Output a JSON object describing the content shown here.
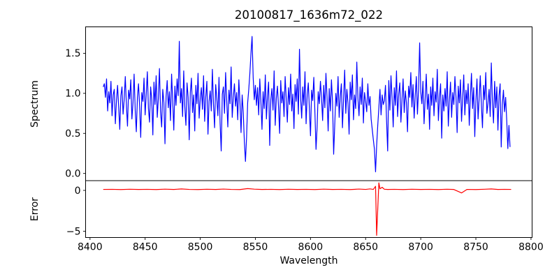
{
  "figure": {
    "title": "20100817_1636m72_022",
    "background": "#ffffff",
    "axis_color": "#000000"
  },
  "chart_data": [
    {
      "type": "line",
      "name": "spectrum",
      "ylabel": "Spectrum",
      "color": "#0000ff",
      "xlim": [
        8396,
        8801
      ],
      "ylim": [
        -0.09,
        1.83
      ],
      "yticks": [
        0.0,
        0.5,
        1.0,
        1.5
      ],
      "ytick_labels": [
        "0.0",
        "0.5",
        "1.0",
        "1.5"
      ],
      "x_start": 8412,
      "x_step": 1,
      "values": [
        1.08,
        1.12,
        0.95,
        1.18,
        0.78,
        1.02,
        0.88,
        1.15,
        0.72,
        0.98,
        1.05,
        0.62,
        0.91,
        1.1,
        0.83,
        0.55,
        0.97,
        1.08,
        0.74,
        0.92,
        1.21,
        0.86,
        0.59,
        1.04,
        0.93,
        1.17,
        0.68,
        0.88,
        1.24,
        0.79,
        0.52,
        0.95,
        1.12,
        0.84,
        0.45,
        1.01,
        0.9,
        1.19,
        0.73,
        0.99,
        1.27,
        0.81,
        0.64,
        1.08,
        0.92,
        0.48,
        1.14,
        0.86,
        1.22,
        0.7,
        0.94,
        1.31,
        0.77,
        0.58,
        1.05,
        0.89,
        0.37,
        0.96,
        1.16,
        0.82,
        1.02,
        0.66,
        1.24,
        0.91,
        0.54,
        1.09,
        0.85,
        1.18,
        0.97,
        1.65,
        0.88,
        1.06,
        0.71,
        1.28,
        0.83,
        0.6,
        1.13,
        0.95,
        0.42,
        1.01,
        1.19,
        0.76,
        0.98,
        0.53,
        1.1,
        0.87,
        1.25,
        0.69,
        0.93,
        1.07,
        0.8,
        1.22,
        0.65,
        0.96,
        1.15,
        0.49,
        0.9,
        1.03,
        0.78,
        1.3,
        0.86,
        0.57,
        1.11,
        0.94,
        0.72,
        1.2,
        0.63,
        0.28,
        0.99,
        1.08,
        0.75,
        1.26,
        0.91,
        0.58,
        1.04,
        0.87,
        1.33,
        0.7,
        0.95,
        1.12,
        0.84,
        1.01,
        0.67,
        1.17,
        0.89,
        0.51,
        0.98,
        0.76,
        0.4,
        0.15,
        0.45,
        0.88,
        1.05,
        1.25,
        1.5,
        1.71,
        1.2,
        0.92,
        1.1,
        0.85,
        1.07,
        0.73,
        1.18,
        0.9,
        0.55,
        1.02,
        0.81,
        1.23,
        0.68,
        0.97,
        1.14,
        0.35,
        0.92,
        1.06,
        0.79,
        1.28,
        0.6,
        0.94,
        1.09,
        0.83,
        0.5,
        1.16,
        0.88,
        1.02,
        0.71,
        1.21,
        0.93,
        0.64,
        1.07,
        0.86,
        1.24,
        0.78,
        0.99,
        0.56,
        1.11,
        0.9,
        1.18,
        0.74,
        1.55,
        0.95,
        0.69,
        1.08,
        0.85,
        1.27,
        0.62,
        0.98,
        1.13,
        0.8,
        0.47,
        1.04,
        0.91,
        1.2,
        0.76,
        0.3,
        0.58,
        1.02,
        0.87,
        1.15,
        0.94,
        0.66,
        1.1,
        0.82,
        1.25,
        0.95,
        0.53,
        1.06,
        0.78,
        1.17,
        0.89,
        0.24,
        0.61,
        1.0,
        0.84,
        1.21,
        0.7,
        0.96,
        1.12,
        0.57,
        0.93,
        1.29,
        0.75,
        1.05,
        0.88,
        0.49,
        1.14,
        0.92,
        1.23,
        0.67,
        0.98,
        0.81,
        1.39,
        0.94,
        0.72,
        1.08,
        0.86,
        1.19,
        0.63,
        1.01,
        0.9,
        0.77,
        1.12,
        0.85,
        0.96,
        0.68,
        0.55,
        0.42,
        0.3,
        0.02,
        0.35,
        0.6,
        0.82,
        1.05,
        0.73,
        0.98,
        0.86,
        0.91,
        1.1,
        0.66,
        0.28,
        1.16,
        0.79,
        1.22,
        0.94,
        0.58,
        1.07,
        0.85,
        1.28,
        0.71,
        0.99,
        1.13,
        0.64,
        0.92,
        1.18,
        0.76,
        1.03,
        0.88,
        0.52,
        1.09,
        0.95,
        1.26,
        0.83,
        1.11,
        0.69,
        0.97,
        1.21,
        0.74,
        1.05,
        1.63,
        1.02,
        0.87,
        1.15,
        0.62,
        0.93,
        1.24,
        0.8,
        0.99,
        0.55,
        1.08,
        0.85,
        1.19,
        0.72,
        1.02,
        0.89,
        1.3,
        0.66,
        0.95,
        1.12,
        0.44,
        0.98,
        0.78,
        1.06,
        0.84,
        1.27,
        0.59,
        0.92,
        1.14,
        0.7,
        1.01,
        0.86,
        1.21,
        0.95,
        0.51,
        1.09,
        0.88,
        1.17,
        0.65,
        0.94,
        1.23,
        0.73,
        1.04,
        0.87,
        1.12,
        0.6,
        0.96,
        1.25,
        0.81,
        1.07,
        0.46,
        0.9,
        1.18,
        0.68,
        0.94,
        1.22,
        0.85,
        0.57,
        1.1,
        0.92,
        1.26,
        0.75,
        0.88,
        1.05,
        0.71,
        1.38,
        0.9,
        0.63,
        1.15,
        0.82,
        1.08,
        0.54,
        0.97,
        1.12,
        0.33,
        0.86,
        1.04,
        0.77,
        0.95,
        0.66,
        0.31,
        0.6,
        0.33
      ]
    },
    {
      "type": "line",
      "name": "error",
      "ylabel": "Error",
      "xlabel": "Wavelength",
      "color": "#ff0000",
      "xlim": [
        8396,
        8801
      ],
      "ylim": [
        -5.76,
        1.19
      ],
      "yticks": [
        0,
        -5
      ],
      "ytick_labels": [
        "0",
        "−5"
      ],
      "xticks": [
        8400,
        8450,
        8500,
        8550,
        8600,
        8650,
        8700,
        8750,
        8800
      ],
      "xtick_labels": [
        "8400",
        "8450",
        "8500",
        "8550",
        "8600",
        "8650",
        "8700",
        "8750",
        "8800"
      ],
      "points": [
        [
          8412,
          0.12
        ],
        [
          8420,
          0.13
        ],
        [
          8428,
          0.1
        ],
        [
          8436,
          0.14
        ],
        [
          8444,
          0.11
        ],
        [
          8452,
          0.13
        ],
        [
          8460,
          0.1
        ],
        [
          8468,
          0.15
        ],
        [
          8476,
          0.11
        ],
        [
          8483,
          0.18
        ],
        [
          8490,
          0.12
        ],
        [
          8498,
          0.1
        ],
        [
          8506,
          0.14
        ],
        [
          8514,
          0.11
        ],
        [
          8521,
          0.16
        ],
        [
          8528,
          0.12
        ],
        [
          8536,
          0.1
        ],
        [
          8543,
          0.22
        ],
        [
          8549,
          0.15
        ],
        [
          8556,
          0.11
        ],
        [
          8564,
          0.13
        ],
        [
          8572,
          0.1
        ],
        [
          8580,
          0.14
        ],
        [
          8588,
          0.11
        ],
        [
          8596,
          0.13
        ],
        [
          8604,
          0.1
        ],
        [
          8612,
          0.15
        ],
        [
          8620,
          0.11
        ],
        [
          8628,
          0.13
        ],
        [
          8636,
          0.1
        ],
        [
          8644,
          0.16
        ],
        [
          8650,
          0.12
        ],
        [
          8654,
          0.18
        ],
        [
          8657,
          0.12
        ],
        [
          8659,
          0.5
        ],
        [
          8660,
          -5.5
        ],
        [
          8662,
          0.93
        ],
        [
          8663,
          0.2
        ],
        [
          8665,
          0.38
        ],
        [
          8667,
          0.14
        ],
        [
          8670,
          0.11
        ],
        [
          8676,
          0.13
        ],
        [
          8684,
          0.1
        ],
        [
          8692,
          0.14
        ],
        [
          8700,
          0.11
        ],
        [
          8708,
          0.13
        ],
        [
          8716,
          0.1
        ],
        [
          8724,
          0.14
        ],
        [
          8730,
          0.11
        ],
        [
          8737,
          -0.31
        ],
        [
          8742,
          0.12
        ],
        [
          8750,
          0.1
        ],
        [
          8758,
          0.14
        ],
        [
          8764,
          0.18
        ],
        [
          8770,
          0.11
        ],
        [
          8776,
          0.13
        ],
        [
          8782,
          0.12
        ]
      ]
    }
  ]
}
